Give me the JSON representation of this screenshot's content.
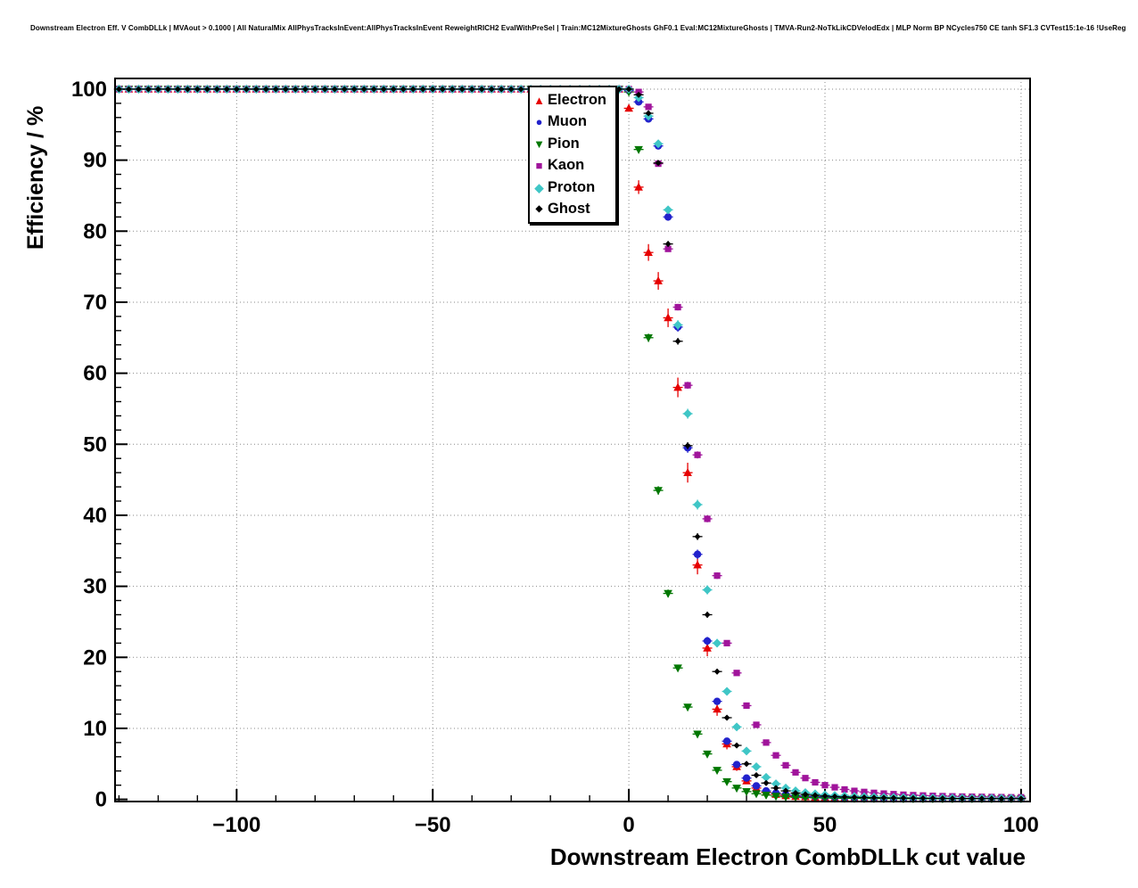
{
  "header": {
    "title": "Downstream Electron Eff. V CombDLLk | MVAout > 0.1000 | All NaturalMix AllPhysTracksInEvent:AllPhysTracksInEvent ReweightRICH2 EvalWithPreSel | Train:MC12MixtureGhosts GhF0.1 Eval:MC12MixtureGhosts | TMVA-Run2-NoTkLikCDVelodEdx | MLP Norm BP NCycles750 CE tanh SF1.3 CVTest15:1e-16 !UseReg"
  },
  "chart_data": {
    "type": "scatter",
    "title": "Downstream Electron Eff. V CombDLLk",
    "xlabel": "Downstream Electron CombDLLk cut value",
    "ylabel": "Efficiency / %",
    "xlim": [
      -131,
      102.3
    ],
    "ylim": [
      -0.3,
      101.5
    ],
    "x_ticks": [
      -100,
      -50,
      0,
      50,
      100
    ],
    "x_tick_labels": [
      "−100",
      "−50",
      "0",
      "50",
      "100"
    ],
    "y_ticks": [
      0,
      10,
      20,
      30,
      40,
      50,
      60,
      70,
      80,
      90,
      100
    ],
    "y_tick_labels": [
      "0",
      "10",
      "20",
      "30",
      "40",
      "50",
      "60",
      "70",
      "80",
      "90",
      "100"
    ],
    "x_minor_step": 10,
    "y_minor_step": 2,
    "grid": "dotted",
    "legend_position": "top-center",
    "flat_region": {
      "from": -130,
      "to": -2.5,
      "step": 2.5,
      "value": 100
    },
    "xerr": 1.25,
    "decline_x": [
      0,
      2.5,
      5,
      7.5,
      10,
      12.5,
      15,
      17.5,
      20,
      22.5,
      25,
      27.5,
      30,
      32.5,
      35,
      37.5,
      40,
      42.5,
      45,
      47.5,
      50,
      52.5,
      55,
      57.5,
      60,
      62.5,
      65,
      67.5,
      70,
      72.5,
      75,
      77.5,
      80,
      82.5,
      85,
      87.5,
      90,
      92.5,
      95,
      97.5,
      100
    ],
    "series": [
      {
        "name": "Electron",
        "color": "#e60000",
        "marker": "triangle-up",
        "yerr_scale": 1.4,
        "y": [
          97.3,
          86.2,
          77.0,
          73.0,
          67.8,
          58.0,
          46.0,
          33.0,
          21.3,
          12.7,
          7.8,
          4.6,
          2.6,
          1.6,
          1.0,
          0.7,
          0.5,
          0.4,
          0.35,
          0.3,
          0.28,
          0.25,
          0.22,
          0.2,
          0.18,
          0.16,
          0.15,
          0.14,
          0.13,
          0.12,
          0.12,
          0.11,
          0.1,
          0.1,
          0.1,
          0.1,
          0.1,
          0.1,
          0.1,
          0.1,
          0.1
        ]
      },
      {
        "name": "Muon",
        "color": "#2222cc",
        "marker": "circle",
        "yerr_scale": 0.7,
        "y": [
          99.8,
          98.2,
          95.8,
          92.0,
          82.0,
          66.5,
          49.5,
          34.5,
          22.3,
          13.8,
          8.2,
          4.9,
          3.0,
          1.9,
          1.2,
          0.9,
          0.7,
          0.55,
          0.45,
          0.38,
          0.32,
          0.28,
          0.25,
          0.22,
          0.2,
          0.18,
          0.16,
          0.15,
          0.14,
          0.13,
          0.12,
          0.11,
          0.1,
          0.1,
          0.1,
          0.1,
          0.1,
          0.1,
          0.1,
          0.1,
          0.1
        ]
      },
      {
        "name": "Pion",
        "color": "#007700",
        "marker": "triangle-down",
        "yerr_scale": 0.6,
        "y": [
          99.6,
          91.5,
          65.0,
          43.5,
          29.0,
          18.5,
          13.0,
          9.2,
          6.4,
          4.1,
          2.5,
          1.6,
          1.1,
          0.8,
          0.6,
          0.45,
          0.35,
          0.3,
          0.25,
          0.22,
          0.2,
          0.17,
          0.15,
          0.13,
          0.12,
          0.11,
          0.1,
          0.1,
          0.09,
          0.09,
          0.08,
          0.08,
          0.08,
          0.08,
          0.08,
          0.08,
          0.08,
          0.08,
          0.08,
          0.08,
          0.08
        ]
      },
      {
        "name": "Kaon",
        "color": "#a0149b",
        "marker": "square",
        "yerr_scale": 0.5,
        "y": [
          100,
          99.6,
          97.5,
          89.5,
          77.5,
          69.3,
          58.3,
          48.5,
          39.5,
          31.5,
          22.0,
          17.8,
          13.2,
          10.5,
          8.0,
          6.2,
          4.8,
          3.8,
          3.0,
          2.4,
          2.0,
          1.7,
          1.4,
          1.2,
          1.05,
          0.92,
          0.82,
          0.74,
          0.66,
          0.6,
          0.55,
          0.5,
          0.46,
          0.43,
          0.4,
          0.38,
          0.36,
          0.34,
          0.32,
          0.3,
          0.3
        ]
      },
      {
        "name": "Proton",
        "color": "#3fc6c6",
        "marker": "diamond",
        "yerr_scale": 0.7,
        "y": [
          100,
          98.8,
          96.2,
          92.3,
          83.0,
          66.8,
          54.3,
          41.5,
          29.5,
          22.0,
          15.2,
          10.2,
          6.8,
          4.6,
          3.1,
          2.2,
          1.6,
          1.2,
          0.95,
          0.78,
          0.65,
          0.55,
          0.48,
          0.42,
          0.38,
          0.34,
          0.3,
          0.28,
          0.26,
          0.24,
          0.22,
          0.2,
          0.19,
          0.18,
          0.17,
          0.16,
          0.15,
          0.15,
          0.14,
          0.14,
          0.13
        ]
      },
      {
        "name": "Ghost",
        "color": "#000000",
        "marker": "diamond-small",
        "yerr_scale": 0.5,
        "y": [
          100,
          99.2,
          96.6,
          89.6,
          78.2,
          64.5,
          49.8,
          37.0,
          26.0,
          18.0,
          11.5,
          7.6,
          5.0,
          3.4,
          2.3,
          1.6,
          1.2,
          0.9,
          0.7,
          0.58,
          0.48,
          0.4,
          0.35,
          0.3,
          0.27,
          0.24,
          0.22,
          0.2,
          0.18,
          0.17,
          0.16,
          0.15,
          0.14,
          0.13,
          0.12,
          0.12,
          0.11,
          0.11,
          0.1,
          0.1,
          0.1
        ]
      }
    ]
  }
}
